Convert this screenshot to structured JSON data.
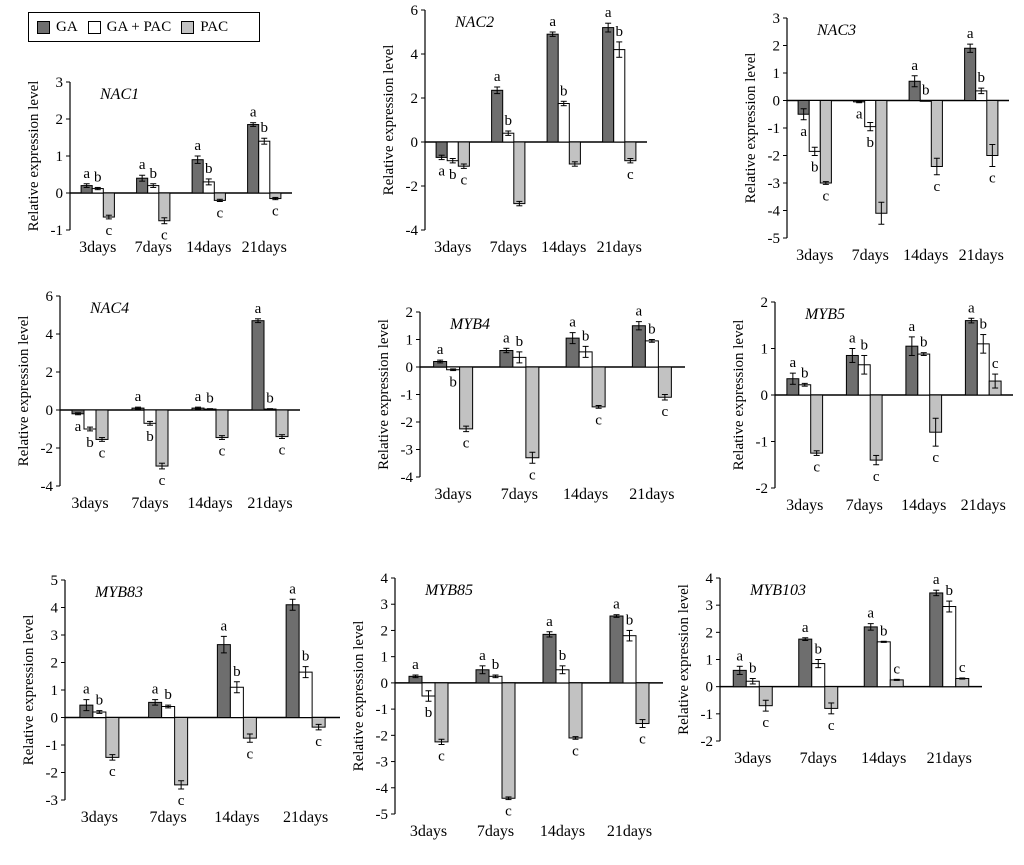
{
  "legend": {
    "items": [
      {
        "label": "GA",
        "color": "#6e6e6e"
      },
      {
        "label": "GA + PAC",
        "color": "#ffffff"
      },
      {
        "label": "PAC",
        "color": "#c2c2c2"
      }
    ]
  },
  "chart_data": [
    {
      "type": "bar",
      "title": "NAC1",
      "ylabel": "Relative expression level",
      "xlabel": "",
      "categories": [
        "3days",
        "7days",
        "14days",
        "21days"
      ],
      "ylim": [
        -1,
        3
      ],
      "yticks": [
        -1,
        0,
        1,
        2,
        3
      ],
      "series": [
        {
          "name": "GA",
          "values": [
            0.2,
            0.4,
            0.9,
            1.85
          ],
          "errors": [
            0.05,
            0.08,
            0.1,
            0.05
          ],
          "letters": [
            "a",
            "a",
            "a",
            "a"
          ]
        },
        {
          "name": "GA + PAC",
          "values": [
            0.12,
            0.2,
            0.3,
            1.4
          ],
          "errors": [
            0.03,
            0.05,
            0.08,
            0.08
          ],
          "letters": [
            "b",
            "b",
            "b",
            "b"
          ]
        },
        {
          "name": "PAC",
          "values": [
            -0.65,
            -0.75,
            -0.2,
            -0.15
          ],
          "errors": [
            0.05,
            0.08,
            0.03,
            0.03
          ],
          "letters": [
            "c",
            "c",
            "c",
            "c"
          ]
        }
      ]
    },
    {
      "type": "bar",
      "title": "NAC2",
      "ylabel": "Relative expression level",
      "xlabel": "",
      "categories": [
        "3days",
        "7days",
        "14days",
        "21days"
      ],
      "ylim": [
        -4,
        6
      ],
      "yticks": [
        -4,
        -2,
        0,
        2,
        4,
        6
      ],
      "series": [
        {
          "name": "GA",
          "values": [
            -0.7,
            2.35,
            4.9,
            5.2
          ],
          "errors": [
            0.1,
            0.15,
            0.1,
            0.2
          ],
          "letters": [
            "a",
            "a",
            "a",
            "a"
          ]
        },
        {
          "name": "GA + PAC",
          "values": [
            -0.85,
            0.4,
            1.75,
            4.2
          ],
          "errors": [
            0.1,
            0.1,
            0.1,
            0.35
          ],
          "letters": [
            "b",
            "b",
            "b",
            "b"
          ]
        },
        {
          "name": "PAC",
          "values": [
            -1.1,
            -2.8,
            -1.0,
            -0.85
          ],
          "errors": [
            0.1,
            0.1,
            0.1,
            0.1
          ],
          "letters": [
            "c",
            "",
            "",
            "c"
          ]
        }
      ]
    },
    {
      "type": "bar",
      "title": "NAC3",
      "ylabel": "Relative expression level",
      "xlabel": "",
      "categories": [
        "3days",
        "7days",
        "14days",
        "21days"
      ],
      "ylim": [
        -5,
        3
      ],
      "yticks": [
        -5,
        -4,
        -3,
        -2,
        -1,
        0,
        1,
        2,
        3
      ],
      "series": [
        {
          "name": "GA",
          "values": [
            -0.5,
            -0.05,
            0.7,
            1.9
          ],
          "errors": [
            0.2,
            0.03,
            0.2,
            0.15
          ],
          "letters": [
            "a",
            "a",
            "a",
            "a"
          ]
        },
        {
          "name": "GA + PAC",
          "values": [
            -1.85,
            -0.95,
            0.0,
            0.35
          ],
          "errors": [
            0.15,
            0.15,
            0.0,
            0.1
          ],
          "letters": [
            "b",
            "b",
            "b",
            "b"
          ]
        },
        {
          "name": "PAC",
          "values": [
            -3.0,
            -4.1,
            -2.4,
            -2.0
          ],
          "errors": [
            0.05,
            0.4,
            0.3,
            0.4
          ],
          "letters": [
            "c",
            "",
            "c",
            "c"
          ]
        }
      ]
    },
    {
      "type": "bar",
      "title": "NAC4",
      "ylabel": "Relative expression level",
      "xlabel": "",
      "categories": [
        "3days",
        "7days",
        "14days",
        "21days"
      ],
      "ylim": [
        -4,
        6
      ],
      "yticks": [
        -4,
        -2,
        0,
        2,
        4,
        6
      ],
      "series": [
        {
          "name": "GA",
          "values": [
            -0.2,
            0.1,
            0.1,
            4.7
          ],
          "errors": [
            0.05,
            0.05,
            0.05,
            0.1
          ],
          "letters": [
            "a",
            "a",
            "a",
            "a"
          ]
        },
        {
          "name": "GA + PAC",
          "values": [
            -1.0,
            -0.7,
            0.05,
            0.05
          ],
          "errors": [
            0.1,
            0.1,
            0.02,
            0.02
          ],
          "letters": [
            "b",
            "b",
            "b",
            "b"
          ]
        },
        {
          "name": "PAC",
          "values": [
            -1.55,
            -2.95,
            -1.45,
            -1.4
          ],
          "errors": [
            0.1,
            0.15,
            0.1,
            0.1
          ],
          "letters": [
            "c",
            "c",
            "c",
            "c"
          ]
        }
      ]
    },
    {
      "type": "bar",
      "title": "MYB4",
      "ylabel": "Relative expression level",
      "xlabel": "",
      "categories": [
        "3days",
        "7days",
        "14days",
        "21days"
      ],
      "ylim": [
        -4,
        2
      ],
      "yticks": [
        -4,
        -3,
        -2,
        -1,
        0,
        1,
        2
      ],
      "series": [
        {
          "name": "GA",
          "values": [
            0.2,
            0.6,
            1.05,
            1.5
          ],
          "errors": [
            0.05,
            0.08,
            0.2,
            0.15
          ],
          "letters": [
            "a",
            "a",
            "a",
            "a"
          ]
        },
        {
          "name": "GA + PAC",
          "values": [
            -0.1,
            0.35,
            0.55,
            0.95
          ],
          "errors": [
            0.03,
            0.2,
            0.2,
            0.05
          ],
          "letters": [
            "b",
            "b",
            "b",
            "b"
          ]
        },
        {
          "name": "PAC",
          "values": [
            -2.25,
            -3.3,
            -1.45,
            -1.1
          ],
          "errors": [
            0.1,
            0.2,
            0.05,
            0.1
          ],
          "letters": [
            "c",
            "c",
            "c",
            "c"
          ]
        }
      ]
    },
    {
      "type": "bar",
      "title": "MYB5",
      "ylabel": "Relative expression level",
      "xlabel": "",
      "categories": [
        "3days",
        "7days",
        "14days",
        "21days"
      ],
      "ylim": [
        -2,
        2
      ],
      "yticks": [
        -2,
        -1,
        0,
        1,
        2
      ],
      "series": [
        {
          "name": "GA",
          "values": [
            0.35,
            0.85,
            1.05,
            1.6
          ],
          "errors": [
            0.12,
            0.15,
            0.2,
            0.05
          ],
          "letters": [
            "a",
            "a",
            "a",
            "a"
          ]
        },
        {
          "name": "GA + PAC",
          "values": [
            0.22,
            0.65,
            0.88,
            1.1
          ],
          "errors": [
            0.03,
            0.2,
            0.03,
            0.2
          ],
          "letters": [
            "b",
            "b",
            "b",
            "b"
          ]
        },
        {
          "name": "PAC",
          "values": [
            -1.25,
            -1.4,
            -0.8,
            0.3
          ],
          "errors": [
            0.05,
            0.1,
            0.3,
            0.15
          ],
          "letters": [
            "c",
            "c",
            "c",
            "c"
          ]
        }
      ]
    },
    {
      "type": "bar",
      "title": "MYB83",
      "ylabel": "Relative expression level",
      "xlabel": "",
      "categories": [
        "3days",
        "7days",
        "14days",
        "21days"
      ],
      "ylim": [
        -3,
        5
      ],
      "yticks": [
        -3,
        -2,
        -1,
        0,
        1,
        2,
        3,
        4,
        5
      ],
      "series": [
        {
          "name": "GA",
          "values": [
            0.45,
            0.55,
            2.65,
            4.1
          ],
          "errors": [
            0.2,
            0.1,
            0.3,
            0.2
          ],
          "letters": [
            "a",
            "a",
            "a",
            "a"
          ]
        },
        {
          "name": "GA + PAC",
          "values": [
            0.2,
            0.4,
            1.1,
            1.65
          ],
          "errors": [
            0.05,
            0.05,
            0.2,
            0.2
          ],
          "letters": [
            "b",
            "b",
            "b",
            "b"
          ]
        },
        {
          "name": "PAC",
          "values": [
            -1.45,
            -2.45,
            -0.75,
            -0.35
          ],
          "errors": [
            0.1,
            0.15,
            0.15,
            0.1
          ],
          "letters": [
            "c",
            "c",
            "c",
            "c"
          ]
        }
      ]
    },
    {
      "type": "bar",
      "title": "MYB85",
      "ylabel": "Relative expression level",
      "xlabel": "",
      "categories": [
        "3days",
        "7days",
        "14days",
        "21days"
      ],
      "ylim": [
        -5,
        4
      ],
      "yticks": [
        -5,
        -4,
        -3,
        -2,
        -1,
        0,
        1,
        2,
        3,
        4
      ],
      "series": [
        {
          "name": "GA",
          "values": [
            0.25,
            0.5,
            1.85,
            2.55
          ],
          "errors": [
            0.05,
            0.15,
            0.1,
            0.05
          ],
          "letters": [
            "a",
            "a",
            "a",
            "a"
          ]
        },
        {
          "name": "GA + PAC",
          "values": [
            -0.5,
            0.25,
            0.5,
            1.8
          ],
          "errors": [
            0.2,
            0.05,
            0.15,
            0.2
          ],
          "letters": [
            "b",
            "b",
            "b",
            "b"
          ]
        },
        {
          "name": "PAC",
          "values": [
            -2.25,
            -4.4,
            -2.1,
            -1.55
          ],
          "errors": [
            0.1,
            0.05,
            0.05,
            0.15
          ],
          "letters": [
            "c",
            "c",
            "c",
            "c"
          ]
        }
      ]
    },
    {
      "type": "bar",
      "title": "MYB103",
      "ylabel": "Relative expression level",
      "xlabel": "",
      "categories": [
        "3days",
        "7days",
        "14days",
        "21days"
      ],
      "ylim": [
        -2,
        4
      ],
      "yticks": [
        -2,
        -1,
        0,
        1,
        2,
        3,
        4
      ],
      "series": [
        {
          "name": "GA",
          "values": [
            0.6,
            1.75,
            2.2,
            3.45
          ],
          "errors": [
            0.15,
            0.05,
            0.12,
            0.1
          ],
          "letters": [
            "a",
            "a",
            "a",
            "a"
          ]
        },
        {
          "name": "GA + PAC",
          "values": [
            0.2,
            0.85,
            1.65,
            2.95
          ],
          "errors": [
            0.1,
            0.15,
            0.02,
            0.2
          ],
          "letters": [
            "b",
            "b",
            "b",
            "b"
          ]
        },
        {
          "name": "PAC",
          "values": [
            -0.7,
            -0.8,
            0.25,
            0.3
          ],
          "errors": [
            0.2,
            0.2,
            0.02,
            0.02
          ],
          "letters": [
            "c",
            "c",
            "c",
            "c"
          ]
        }
      ]
    }
  ]
}
